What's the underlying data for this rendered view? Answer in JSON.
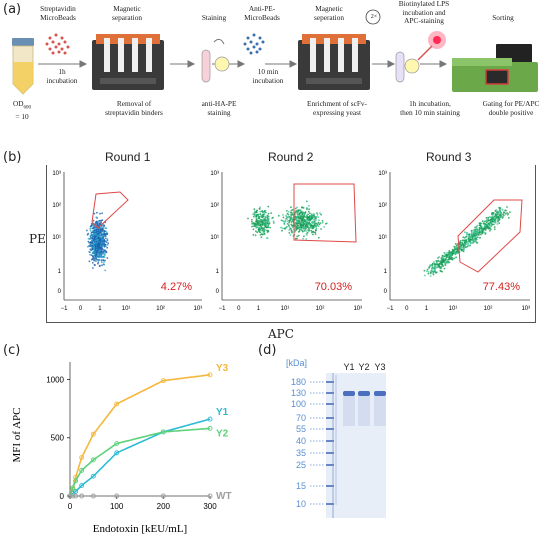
{
  "panel_a": {
    "label": "(a)",
    "steps_top": [
      {
        "text": "Streptavidin\nMicroBeads"
      },
      {
        "text": "Magnetic\nseparation"
      },
      {
        "text": "Staining"
      },
      {
        "text": "Anti-PE-\nMicroBeads"
      },
      {
        "text": "Magnetic\nseperation"
      },
      {
        "text": "Biotinylated LPS\nincubation and\nAPC-staining"
      },
      {
        "text": "Sorting"
      }
    ],
    "arrow_labels": [
      "1h\nincubation",
      "10 min\nincubation"
    ],
    "od_label": "OD",
    "od_sub": "600",
    "od_value": "= 10",
    "repeat_label": "2×",
    "steps_bottom": [
      {
        "text": "Removal of\nstreptavidin binders"
      },
      {
        "text": "anti-HA-PE\nstaining"
      },
      {
        "text": "Enrichment of scFv-\nexpressing yeast"
      },
      {
        "text": "1h  incubation,\nthen 10 min staining"
      },
      {
        "text": "Gating for PE/APC\ndouble positive"
      }
    ]
  },
  "panel_b": {
    "label": "(b)",
    "rounds": [
      "Round 1",
      "Round 2",
      "Round 3"
    ],
    "percents": [
      "4.27%",
      "70.03%",
      "77.43%"
    ],
    "y_label": "PE",
    "x_label": "APC",
    "y_ticks": [
      "10³",
      "10²",
      "10¹",
      "1",
      "0"
    ],
    "x_ticks": [
      "−1",
      "0",
      "1",
      "10¹",
      "10²",
      "10³"
    ]
  },
  "panel_c": {
    "label": "(c)",
    "chart_data": {
      "type": "scatter",
      "xlabel": "Endotoxin [kEU/mL]",
      "ylabel": "MFI of APC",
      "x_ticks": [
        "0",
        "100",
        "200",
        "300"
      ],
      "y_ticks": [
        "0",
        "500",
        "1000"
      ],
      "xlim": [
        0,
        300
      ],
      "ylim": [
        0,
        1150
      ],
      "series": [
        {
          "name": "Y3",
          "color": "#f5b73b",
          "x": [
            0,
            6,
            12,
            25,
            50,
            100,
            200,
            300
          ],
          "y": [
            0,
            60,
            160,
            330,
            530,
            790,
            990,
            1040
          ]
        },
        {
          "name": "Y1",
          "color": "#2bbcd4",
          "x": [
            0,
            6,
            12,
            25,
            50,
            100,
            200,
            300
          ],
          "y": [
            0,
            20,
            40,
            90,
            170,
            370,
            550,
            660
          ]
        },
        {
          "name": "Y2",
          "color": "#5fd07a",
          "x": [
            0,
            6,
            12,
            25,
            50,
            100,
            200,
            300
          ],
          "y": [
            0,
            70,
            130,
            220,
            310,
            450,
            550,
            580
          ]
        },
        {
          "name": "WT",
          "color": "#a0a0a0",
          "x": [
            0,
            6,
            12,
            25,
            50,
            100,
            200,
            300
          ],
          "y": [
            0,
            0,
            0,
            0,
            0,
            0,
            0,
            0
          ]
        }
      ]
    }
  },
  "panel_d": {
    "label": "(d)",
    "unit": "[kDa]",
    "lanes": [
      "Y1",
      "Y2",
      "Y3"
    ],
    "markers": [
      "180",
      "130",
      "100",
      "70",
      "55",
      "40",
      "35",
      "25",
      "15",
      "10"
    ]
  }
}
